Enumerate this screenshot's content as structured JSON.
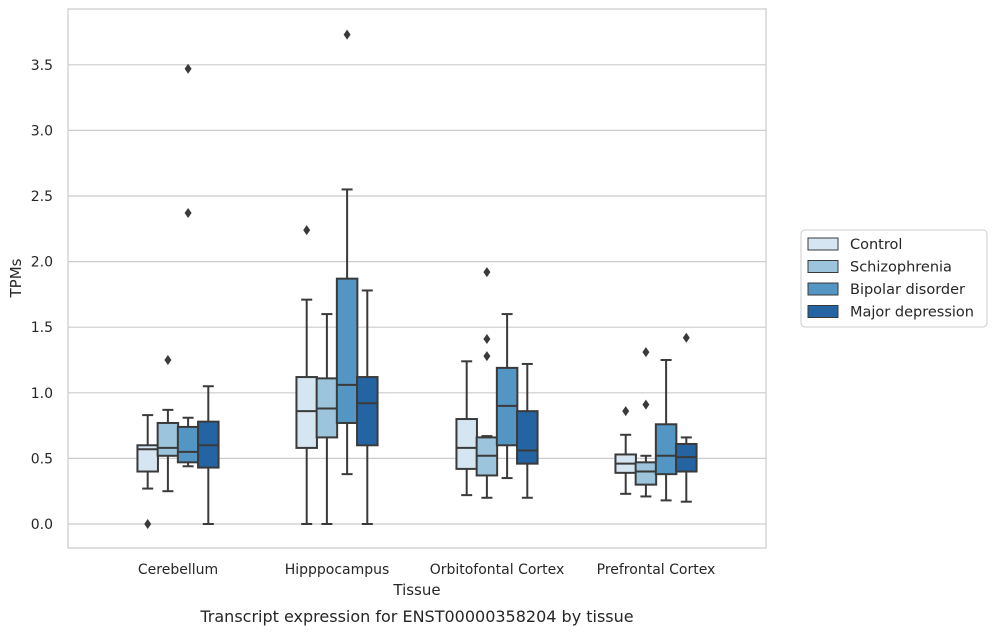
{
  "chart_data": {
    "type": "boxplot",
    "title": "",
    "caption": "Transcript expression for ENST00000358204 by tissue",
    "xlabel": "Tissue",
    "ylabel": "TPMs",
    "ylim": [
      -0.18,
      3.97
    ],
    "yticks": [
      0.0,
      0.5,
      1.0,
      1.5,
      2.0,
      2.5,
      3.0,
      3.5
    ],
    "ytick_labels": [
      "0.0",
      "0.5",
      "1.0",
      "1.5",
      "2.0",
      "2.5",
      "3.0",
      "3.5"
    ],
    "grid": "horizontal",
    "legend_position": "right-outside",
    "categories": [
      "Cerebellum",
      "Hipppocampus",
      "Orbitofontal Cortex",
      "Prefrontal Cortex"
    ],
    "series": [
      {
        "name": "Control",
        "color": "#d6e5f2",
        "boxes": [
          {
            "whislo": 0.27,
            "q1": 0.4,
            "med": 0.57,
            "q3": 0.6,
            "whishi": 0.83,
            "fliers": [
              0.0
            ]
          },
          {
            "whislo": 0.0,
            "q1": 0.58,
            "med": 0.86,
            "q3": 1.12,
            "whishi": 1.71,
            "fliers": [
              2.24
            ]
          },
          {
            "whislo": 0.22,
            "q1": 0.42,
            "med": 0.58,
            "q3": 0.8,
            "whishi": 1.24,
            "fliers": []
          },
          {
            "whislo": 0.23,
            "q1": 0.39,
            "med": 0.46,
            "q3": 0.53,
            "whishi": 0.68,
            "fliers": [
              0.86
            ]
          }
        ]
      },
      {
        "name": "Schizophrenia",
        "color": "#9cc4dc",
        "boxes": [
          {
            "whislo": 0.25,
            "q1": 0.52,
            "med": 0.58,
            "q3": 0.77,
            "whishi": 0.87,
            "fliers": [
              1.25
            ]
          },
          {
            "whislo": 0.0,
            "q1": 0.66,
            "med": 0.88,
            "q3": 1.11,
            "whishi": 1.6,
            "fliers": []
          },
          {
            "whislo": 0.2,
            "q1": 0.37,
            "med": 0.52,
            "q3": 0.66,
            "whishi": 0.67,
            "fliers": [
              1.28,
              1.41,
              1.92
            ]
          },
          {
            "whislo": 0.21,
            "q1": 0.3,
            "med": 0.4,
            "q3": 0.47,
            "whishi": 0.52,
            "fliers": [
              0.91,
              1.31
            ]
          }
        ]
      },
      {
        "name": "Bipolar disorder",
        "color": "#5395c3",
        "boxes": [
          {
            "whislo": 0.44,
            "q1": 0.47,
            "med": 0.55,
            "q3": 0.74,
            "whishi": 0.81,
            "fliers": [
              2.37,
              3.47
            ]
          },
          {
            "whislo": 0.38,
            "q1": 0.77,
            "med": 1.06,
            "q3": 1.87,
            "whishi": 2.55,
            "fliers": [
              3.73
            ]
          },
          {
            "whislo": 0.35,
            "q1": 0.6,
            "med": 0.9,
            "q3": 1.19,
            "whishi": 1.6,
            "fliers": []
          },
          {
            "whislo": 0.18,
            "q1": 0.38,
            "med": 0.52,
            "q3": 0.76,
            "whishi": 1.25,
            "fliers": []
          }
        ]
      },
      {
        "name": "Major depression",
        "color": "#2464a3",
        "boxes": [
          {
            "whislo": 0.0,
            "q1": 0.43,
            "med": 0.6,
            "q3": 0.78,
            "whishi": 1.05,
            "fliers": []
          },
          {
            "whislo": 0.0,
            "q1": 0.6,
            "med": 0.92,
            "q3": 1.12,
            "whishi": 1.78,
            "fliers": []
          },
          {
            "whislo": 0.2,
            "q1": 0.46,
            "med": 0.56,
            "q3": 0.86,
            "whishi": 1.22,
            "fliers": []
          },
          {
            "whislo": 0.17,
            "q1": 0.4,
            "med": 0.51,
            "q3": 0.61,
            "whishi": 0.66,
            "fliers": [
              1.42
            ]
          }
        ]
      }
    ]
  }
}
